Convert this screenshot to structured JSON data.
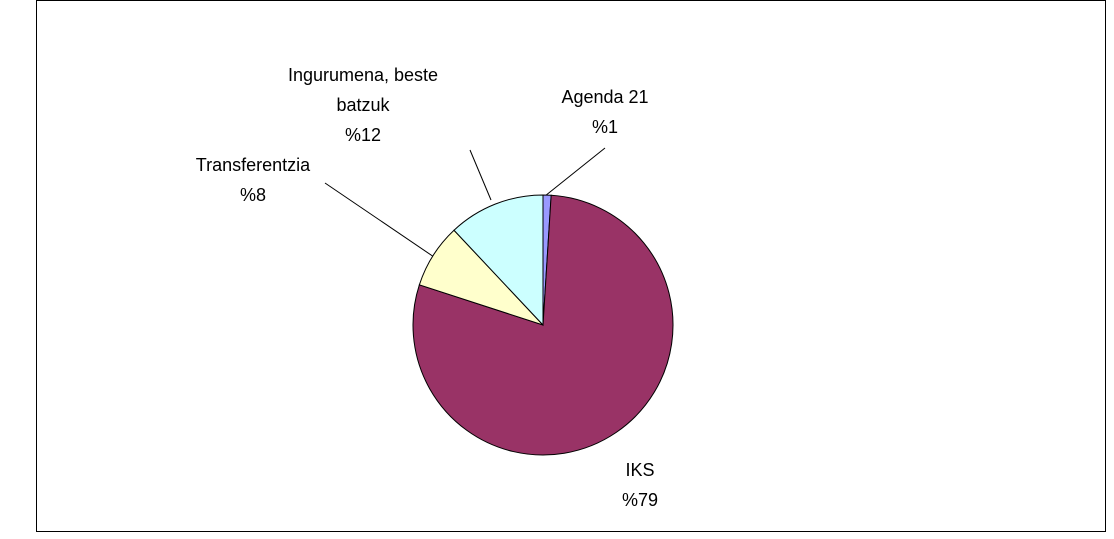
{
  "chart_data": {
    "type": "pie",
    "categories": [
      "Agenda 21",
      "IKS",
      "Transferentzia",
      "Ingurumena, beste batzuk"
    ],
    "values": [
      1,
      79,
      8,
      12
    ],
    "value_labels": [
      "%1",
      "%79",
      "%8",
      "%12"
    ],
    "colors": [
      "#9999ff",
      "#993366",
      "#ffffcc",
      "#ccffff"
    ]
  }
}
